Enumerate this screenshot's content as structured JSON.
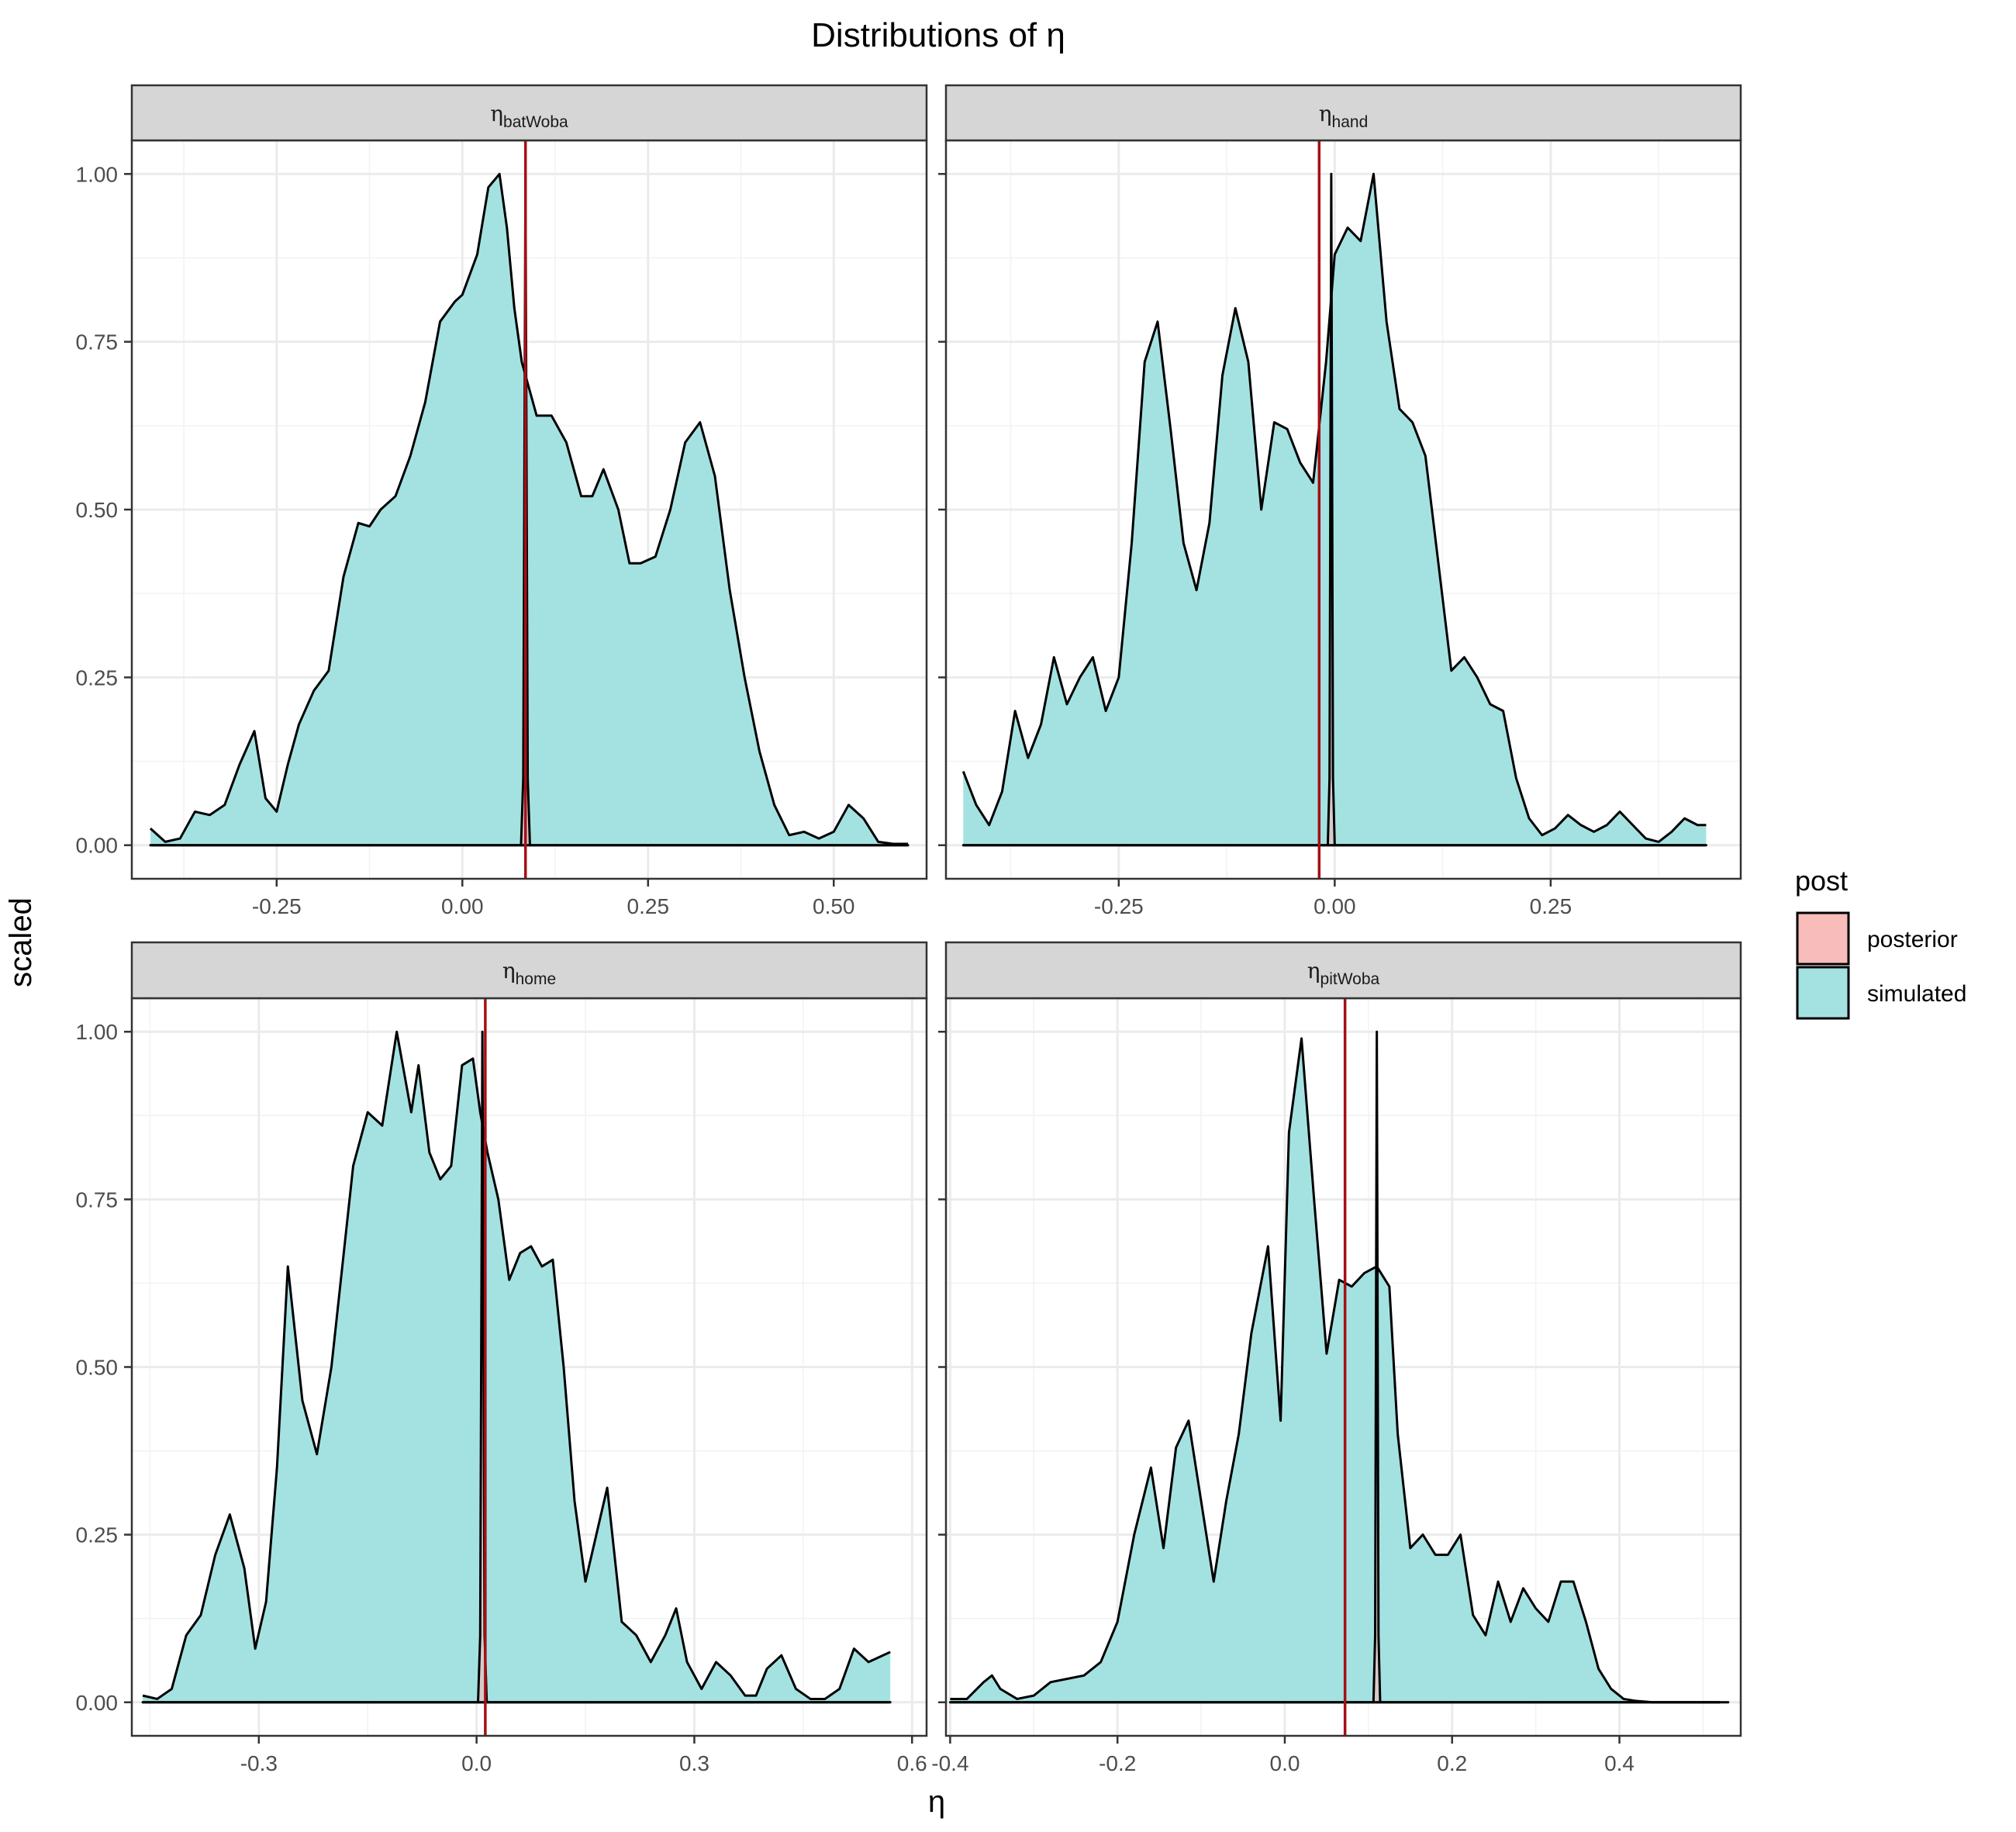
{
  "chart_data": {
    "type": "area",
    "title": "Distributions of η",
    "xlabel": "η",
    "ylabel": "scaled",
    "grid": true,
    "legend": {
      "title": "post",
      "position": "right",
      "entries": [
        {
          "name": "posterior",
          "color": "#F8BCBA"
        },
        {
          "name": "simulated",
          "color": "#A4E2E2"
        }
      ]
    },
    "colors": {
      "vline": "#A50F15",
      "curve": "#000000",
      "panel_border": "#333333",
      "grid_major": "#EBEBEB",
      "strip_fill": "#D6D6D6"
    },
    "ylim": [
      -0.05,
      1.05
    ],
    "yticks": [
      0,
      0.25,
      0.5,
      0.75,
      1.0
    ],
    "ytick_labels": [
      "0.00",
      "0.25",
      "0.50",
      "0.75",
      "1.00"
    ],
    "panels": [
      {
        "strip_symbol": "η",
        "strip_sub": "batWoba",
        "xlim": [
          -0.445,
          0.625
        ],
        "xticks": [
          -0.25,
          0.0,
          0.25,
          0.5
        ],
        "xtick_labels": [
          "-0.25",
          "0.00",
          "0.25",
          "0.50"
        ],
        "vline": 0.085,
        "simulated": {
          "x": [
            -0.42,
            -0.4,
            -0.38,
            -0.36,
            -0.34,
            -0.32,
            -0.3,
            -0.28,
            -0.265,
            -0.25,
            -0.235,
            -0.22,
            -0.2,
            -0.18,
            -0.16,
            -0.14,
            -0.125,
            -0.11,
            -0.09,
            -0.07,
            -0.05,
            -0.03,
            -0.01,
            0.0,
            0.02,
            0.035,
            0.05,
            0.06,
            0.07,
            0.08,
            0.09,
            0.1,
            0.12,
            0.14,
            0.16,
            0.175,
            0.19,
            0.21,
            0.225,
            0.24,
            0.26,
            0.28,
            0.3,
            0.32,
            0.34,
            0.36,
            0.38,
            0.4,
            0.42,
            0.44,
            0.46,
            0.48,
            0.5,
            0.52,
            0.54,
            0.56,
            0.58,
            0.6
          ],
          "y": [
            0.025,
            0.005,
            0.01,
            0.05,
            0.045,
            0.06,
            0.12,
            0.17,
            0.07,
            0.05,
            0.12,
            0.18,
            0.23,
            0.26,
            0.4,
            0.48,
            0.475,
            0.5,
            0.52,
            0.58,
            0.66,
            0.78,
            0.81,
            0.82,
            0.88,
            0.98,
            1.0,
            0.92,
            0.8,
            0.72,
            0.68,
            0.64,
            0.64,
            0.6,
            0.52,
            0.52,
            0.56,
            0.5,
            0.42,
            0.42,
            0.43,
            0.5,
            0.6,
            0.63,
            0.55,
            0.38,
            0.25,
            0.14,
            0.06,
            0.015,
            0.02,
            0.01,
            0.02,
            0.06,
            0.04,
            0.005,
            0.002,
            0.002
          ]
        },
        "posterior": {
          "x": [
            -0.42,
            0.079,
            0.082,
            0.085,
            0.088,
            0.091,
            0.6
          ],
          "y": [
            0,
            0,
            0.1,
            1.0,
            0.1,
            0,
            0
          ]
        }
      },
      {
        "strip_symbol": "η",
        "strip_sub": "hand",
        "xlim": [
          -0.45,
          0.47
        ],
        "xticks": [
          -0.25,
          0.0,
          0.25
        ],
        "xtick_labels": [
          "-0.25",
          "0.00",
          "0.25"
        ],
        "vline": -0.018,
        "simulated": {
          "x": [
            -0.43,
            -0.415,
            -0.4,
            -0.385,
            -0.37,
            -0.355,
            -0.34,
            -0.325,
            -0.31,
            -0.295,
            -0.28,
            -0.265,
            -0.25,
            -0.235,
            -0.22,
            -0.205,
            -0.19,
            -0.175,
            -0.16,
            -0.145,
            -0.13,
            -0.115,
            -0.1,
            -0.085,
            -0.07,
            -0.055,
            -0.04,
            -0.025,
            -0.01,
            0.0,
            0.015,
            0.03,
            0.045,
            0.06,
            0.075,
            0.09,
            0.105,
            0.12,
            0.135,
            0.15,
            0.165,
            0.18,
            0.195,
            0.21,
            0.225,
            0.24,
            0.255,
            0.27,
            0.285,
            0.3,
            0.315,
            0.33,
            0.345,
            0.36,
            0.375,
            0.39,
            0.405,
            0.42,
            0.43
          ],
          "y": [
            0.11,
            0.06,
            0.03,
            0.08,
            0.2,
            0.13,
            0.18,
            0.28,
            0.21,
            0.25,
            0.28,
            0.2,
            0.25,
            0.45,
            0.72,
            0.78,
            0.62,
            0.45,
            0.38,
            0.48,
            0.7,
            0.8,
            0.72,
            0.5,
            0.63,
            0.62,
            0.57,
            0.54,
            0.72,
            0.88,
            0.92,
            0.9,
            1.0,
            0.78,
            0.65,
            0.63,
            0.58,
            0.42,
            0.26,
            0.28,
            0.25,
            0.21,
            0.2,
            0.1,
            0.04,
            0.015,
            0.025,
            0.045,
            0.03,
            0.02,
            0.03,
            0.05,
            0.03,
            0.01,
            0.005,
            0.02,
            0.04,
            0.03,
            0.03
          ]
        },
        "posterior": {
          "x": [
            -0.43,
            -0.008,
            -0.006,
            -0.004,
            -0.002,
            0.0,
            0.43
          ],
          "y": [
            0,
            0,
            0.1,
            1.0,
            0.1,
            0,
            0
          ]
        }
      },
      {
        "strip_symbol": "η",
        "strip_sub": "home",
        "xlim": [
          -0.475,
          0.62
        ],
        "xticks": [
          -0.3,
          0.0,
          0.3,
          0.6
        ],
        "xtick_labels": [
          "-0.3",
          "0.0",
          "0.3",
          "0.6"
        ],
        "vline": 0.012,
        "simulated": {
          "x": [
            -0.46,
            -0.44,
            -0.42,
            -0.4,
            -0.38,
            -0.36,
            -0.34,
            -0.32,
            -0.305,
            -0.29,
            -0.275,
            -0.26,
            -0.24,
            -0.22,
            -0.2,
            -0.185,
            -0.17,
            -0.15,
            -0.13,
            -0.11,
            -0.09,
            -0.08,
            -0.065,
            -0.05,
            -0.035,
            -0.02,
            -0.005,
            0.005,
            0.015,
            0.03,
            0.045,
            0.06,
            0.075,
            0.09,
            0.105,
            0.12,
            0.135,
            0.15,
            0.165,
            0.18,
            0.2,
            0.22,
            0.24,
            0.26,
            0.275,
            0.29,
            0.31,
            0.33,
            0.35,
            0.37,
            0.385,
            0.4,
            0.42,
            0.44,
            0.46,
            0.48,
            0.5,
            0.52,
            0.54,
            0.56,
            0.57
          ],
          "y": [
            0.01,
            0.005,
            0.02,
            0.1,
            0.13,
            0.22,
            0.28,
            0.2,
            0.08,
            0.15,
            0.35,
            0.65,
            0.45,
            0.37,
            0.5,
            0.65,
            0.8,
            0.88,
            0.86,
            1.0,
            0.88,
            0.95,
            0.82,
            0.78,
            0.8,
            0.95,
            0.96,
            0.88,
            0.82,
            0.75,
            0.63,
            0.67,
            0.68,
            0.65,
            0.66,
            0.5,
            0.3,
            0.18,
            0.25,
            0.32,
            0.12,
            0.1,
            0.06,
            0.1,
            0.14,
            0.06,
            0.02,
            0.06,
            0.04,
            0.01,
            0.01,
            0.05,
            0.07,
            0.02,
            0.005,
            0.005,
            0.02,
            0.08,
            0.06,
            0.07,
            0.075
          ]
        },
        "posterior": {
          "x": [
            -0.46,
            0.002,
            0.005,
            0.008,
            0.011,
            0.014,
            0.57
          ],
          "y": [
            0,
            0,
            0.1,
            1.0,
            0.1,
            0,
            0
          ]
        }
      },
      {
        "strip_symbol": "η",
        "strip_sub": "pitWoba",
        "xlim": [
          -0.405,
          0.545
        ],
        "xticks": [
          -0.4,
          -0.2,
          0.0,
          0.2,
          0.4
        ],
        "xtick_labels": [
          "-0.4",
          "-0.2",
          "0.0",
          "0.2",
          "0.4"
        ],
        "vline": 0.072,
        "simulated": {
          "x": [
            -0.4,
            -0.38,
            -0.36,
            -0.35,
            -0.34,
            -0.32,
            -0.3,
            -0.28,
            -0.26,
            -0.24,
            -0.22,
            -0.2,
            -0.18,
            -0.16,
            -0.145,
            -0.13,
            -0.115,
            -0.1,
            -0.085,
            -0.07,
            -0.055,
            -0.04,
            -0.02,
            -0.005,
            0.005,
            0.02,
            0.035,
            0.05,
            0.065,
            0.08,
            0.095,
            0.11,
            0.125,
            0.135,
            0.15,
            0.165,
            0.18,
            0.195,
            0.21,
            0.225,
            0.24,
            0.255,
            0.27,
            0.285,
            0.3,
            0.315,
            0.33,
            0.345,
            0.36,
            0.375,
            0.39,
            0.405,
            0.42,
            0.44,
            0.46,
            0.48,
            0.5,
            0.52
          ],
          "y": [
            0.005,
            0.005,
            0.03,
            0.04,
            0.02,
            0.005,
            0.01,
            0.03,
            0.035,
            0.04,
            0.06,
            0.12,
            0.25,
            0.35,
            0.23,
            0.38,
            0.42,
            0.3,
            0.18,
            0.3,
            0.4,
            0.55,
            0.68,
            0.42,
            0.85,
            0.99,
            0.75,
            0.52,
            0.63,
            0.62,
            0.64,
            0.65,
            0.62,
            0.4,
            0.23,
            0.25,
            0.22,
            0.22,
            0.25,
            0.13,
            0.1,
            0.18,
            0.12,
            0.17,
            0.14,
            0.12,
            0.18,
            0.18,
            0.12,
            0.05,
            0.02,
            0.005,
            0.002,
            0.0,
            0.0,
            0.0,
            0.0,
            0.0
          ]
        },
        "posterior": {
          "x": [
            -0.4,
            0.106,
            0.108,
            0.11,
            0.112,
            0.114,
            0.53
          ],
          "y": [
            0,
            0,
            0.1,
            1.0,
            0.1,
            0,
            0
          ]
        }
      }
    ]
  }
}
